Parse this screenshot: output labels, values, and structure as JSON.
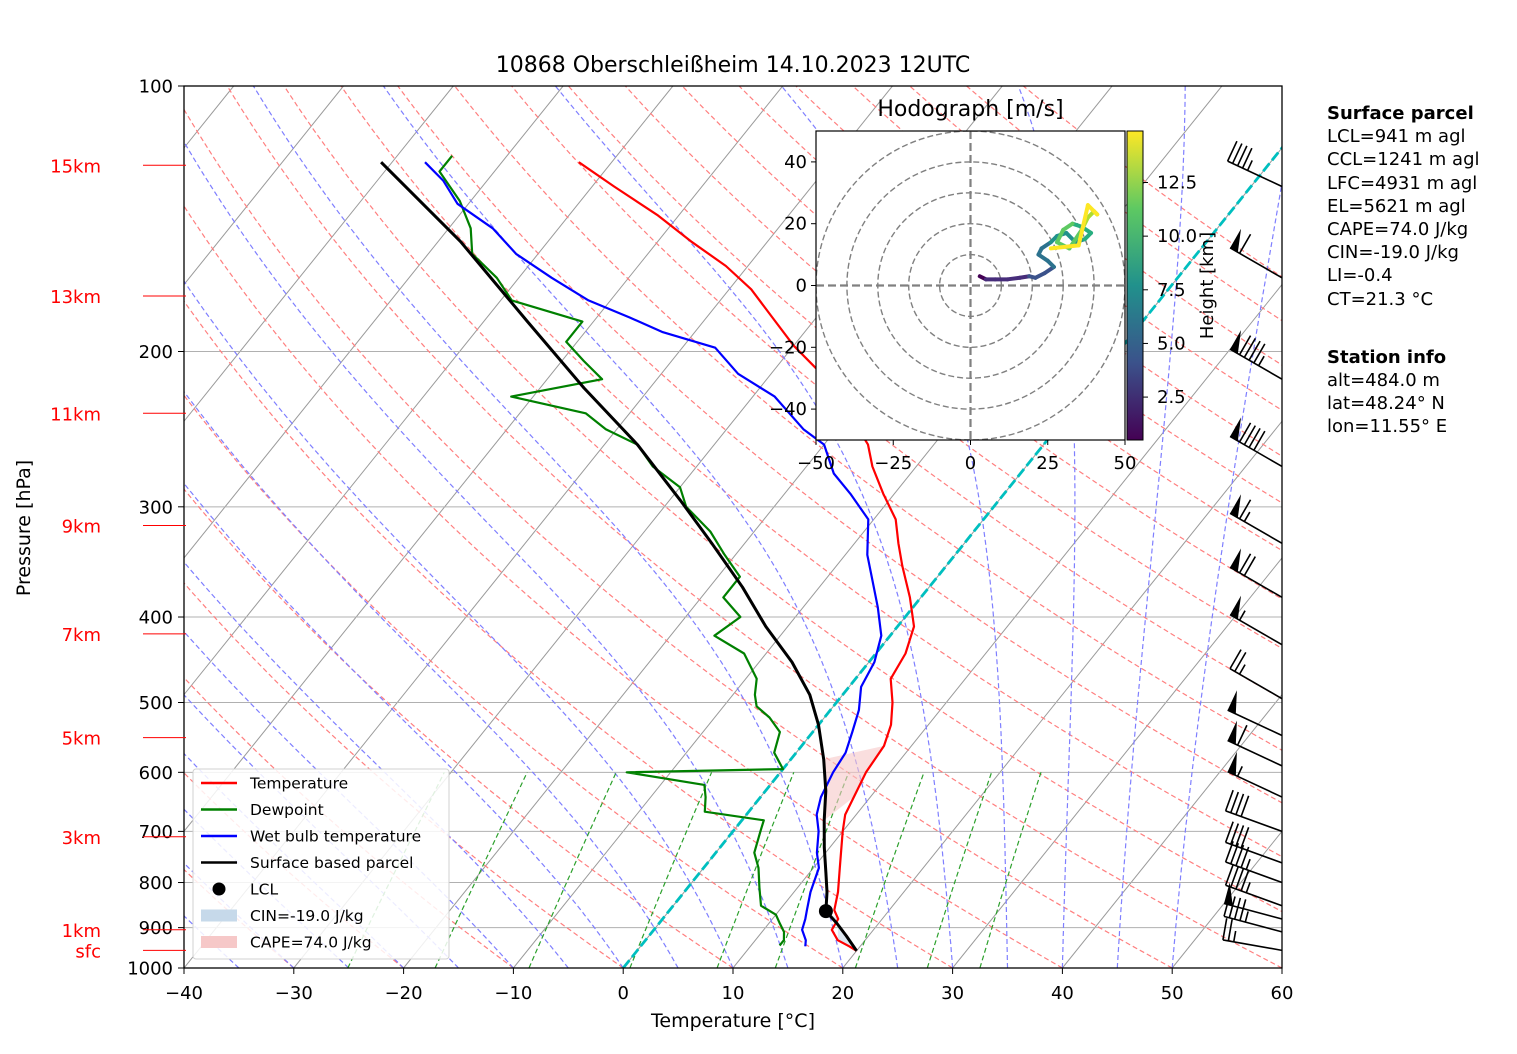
{
  "chart_data": {
    "type": "skew-t",
    "title": "10868 Oberschleißheim 14.10.2023 12UTC",
    "xlabel": "Temperature [°C]",
    "ylabel": "Pressure [hPa]",
    "xlim": [
      -40,
      60
    ],
    "ylim": [
      1000,
      100
    ],
    "y_scale": "log",
    "grid": true,
    "x_ticks": [
      -40,
      -30,
      -20,
      -10,
      0,
      10,
      20,
      30,
      40,
      50,
      60
    ],
    "x_tick_labels": [
      "−40",
      "−30",
      "−20",
      "−10",
      "0",
      "10",
      "20",
      "30",
      "40",
      "50",
      "60"
    ],
    "y_ticks": [
      1000,
      900,
      800,
      700,
      600,
      500,
      400,
      300,
      200,
      100
    ],
    "height_markers": [
      {
        "label": "sfc",
        "p": 955
      },
      {
        "label": "1km",
        "p": 905
      },
      {
        "label": "3km",
        "p": 710
      },
      {
        "label": "5km",
        "p": 548
      },
      {
        "label": "7km",
        "p": 418
      },
      {
        "label": "9km",
        "p": 315
      },
      {
        "label": "11km",
        "p": 235
      },
      {
        "label": "13km",
        "p": 173
      },
      {
        "label": "15km",
        "p": 123
      }
    ],
    "series": [
      {
        "name": "Temperature",
        "color": "#ff0000",
        "points": [
          [
            20,
            956
          ],
          [
            19,
            945
          ],
          [
            17.5,
            930
          ],
          [
            16.2,
            905
          ],
          [
            16,
            880
          ],
          [
            15,
            860
          ],
          [
            14,
            820
          ],
          [
            12.4,
            770
          ],
          [
            11.4,
            740
          ],
          [
            10,
            700
          ],
          [
            9,
            670
          ],
          [
            8.5,
            640
          ],
          [
            7.8,
            600
          ],
          [
            7.5,
            560
          ],
          [
            6.6,
            530
          ],
          [
            5.1,
            500
          ],
          [
            3.2,
            470
          ],
          [
            2.7,
            440
          ],
          [
            1.5,
            410
          ],
          [
            -1,
            380
          ],
          [
            -4,
            350
          ],
          [
            -6,
            330
          ],
          [
            -8,
            310
          ],
          [
            -11,
            290
          ],
          [
            -14,
            270
          ],
          [
            -16,
            255
          ],
          [
            -19,
            240
          ],
          [
            -22,
            225
          ],
          [
            -26,
            210
          ],
          [
            -30,
            197
          ],
          [
            -34,
            183
          ],
          [
            -38,
            170
          ],
          [
            -42,
            160
          ],
          [
            -47,
            150
          ],
          [
            -52,
            140
          ],
          [
            -58,
            130
          ],
          [
            -63,
            122
          ]
        ]
      },
      {
        "name": "Dewpoint",
        "color": "#008000",
        "points": [
          [
            12.6,
            943
          ],
          [
            12.6,
            930
          ],
          [
            12,
            910
          ],
          [
            11,
            890
          ],
          [
            10,
            870
          ],
          [
            8,
            850
          ],
          [
            6.5,
            810
          ],
          [
            5,
            770
          ],
          [
            3.5,
            740
          ],
          [
            2.5,
            700
          ],
          [
            2,
            680
          ],
          [
            -4,
            665
          ],
          [
            -5,
            640
          ],
          [
            -6,
            620
          ],
          [
            -14,
            600
          ],
          [
            0,
            595
          ],
          [
            -2,
            570
          ],
          [
            -3,
            540
          ],
          [
            -5,
            520
          ],
          [
            -7,
            505
          ],
          [
            -8,
            490
          ],
          [
            -9,
            470
          ],
          [
            -12,
            440
          ],
          [
            -16,
            420
          ],
          [
            -15,
            400
          ],
          [
            -18,
            380
          ],
          [
            -18,
            360
          ],
          [
            -21,
            340
          ],
          [
            -24,
            320
          ],
          [
            -28,
            300
          ],
          [
            -30,
            285
          ],
          [
            -34,
            270
          ],
          [
            -37,
            255
          ],
          [
            -41,
            245
          ],
          [
            -44,
            235
          ],
          [
            -52,
            225
          ],
          [
            -45,
            215
          ],
          [
            -48,
            205
          ],
          [
            -51,
            195
          ],
          [
            -51,
            185
          ],
          [
            -59,
            175
          ],
          [
            -62,
            165
          ],
          [
            -66,
            155
          ],
          [
            -68,
            145
          ],
          [
            -71,
            135
          ],
          [
            -75,
            125
          ],
          [
            -75,
            120
          ]
        ]
      },
      {
        "name": "Wet bulb temperature",
        "color": "#0000ff",
        "points": [
          [
            15,
            945
          ],
          [
            14.6,
            930
          ],
          [
            13.5,
            905
          ],
          [
            13,
            880
          ],
          [
            12.5,
            860
          ],
          [
            11.5,
            820
          ],
          [
            10.5,
            770
          ],
          [
            9.2,
            740
          ],
          [
            7.8,
            700
          ],
          [
            6.4,
            670
          ],
          [
            5.5,
            640
          ],
          [
            4.8,
            600
          ],
          [
            4.5,
            570
          ],
          [
            3.6,
            540
          ],
          [
            2.6,
            510
          ],
          [
            1.1,
            480
          ],
          [
            0.5,
            450
          ],
          [
            -0.8,
            420
          ],
          [
            -3.2,
            390
          ],
          [
            -6,
            360
          ],
          [
            -8,
            340
          ],
          [
            -10.5,
            310
          ],
          [
            -14,
            290
          ],
          [
            -17,
            275
          ],
          [
            -20,
            255
          ],
          [
            -23,
            245
          ],
          [
            -28,
            225
          ],
          [
            -33,
            212
          ],
          [
            -37,
            198
          ],
          [
            -43,
            190
          ],
          [
            -47,
            183
          ],
          [
            -52,
            175
          ],
          [
            -57,
            165
          ],
          [
            -62,
            155
          ],
          [
            -66,
            145
          ],
          [
            -71,
            136
          ],
          [
            -74,
            128
          ],
          [
            -77,
            122
          ]
        ]
      },
      {
        "name": "Surface based parcel",
        "color": "#000000",
        "points": [
          [
            20,
            956
          ],
          [
            18,
            920
          ],
          [
            16.2,
            890
          ],
          [
            14.3,
            862
          ],
          [
            13,
            820
          ],
          [
            11.5,
            780
          ],
          [
            9.5,
            730
          ],
          [
            7.5,
            680
          ],
          [
            5.5,
            630
          ],
          [
            3,
            580
          ],
          [
            0,
            530
          ],
          [
            -3,
            490
          ],
          [
            -7,
            450
          ],
          [
            -12,
            410
          ],
          [
            -17,
            370
          ],
          [
            -23,
            330
          ],
          [
            -29,
            295
          ],
          [
            -37,
            255
          ],
          [
            -46,
            220
          ],
          [
            -56,
            185
          ],
          [
            -68,
            150
          ],
          [
            -81,
            122
          ]
        ]
      }
    ],
    "lcl": {
      "name": "LCL",
      "t": 14.3,
      "p": 862
    },
    "legend_extra": [
      "CIN=-19.0 J/kg",
      "CAPE=74.0 J/kg"
    ],
    "legend_position": "lower-left",
    "wind_barbs": [
      {
        "p": 955,
        "speed": 25,
        "dir": 260
      },
      {
        "p": 910,
        "speed": 45,
        "dir": 255
      },
      {
        "p": 880,
        "speed": 50,
        "dir": 255
      },
      {
        "p": 850,
        "speed": 45,
        "dir": 250
      },
      {
        "p": 800,
        "speed": 45,
        "dir": 250
      },
      {
        "p": 760,
        "speed": 40,
        "dir": 250
      },
      {
        "p": 700,
        "speed": 40,
        "dir": 250
      },
      {
        "p": 640,
        "speed": 55,
        "dir": 245
      },
      {
        "p": 590,
        "speed": 60,
        "dir": 245
      },
      {
        "p": 545,
        "speed": 50,
        "dir": 245
      },
      {
        "p": 495,
        "speed": 25,
        "dir": 240
      },
      {
        "p": 430,
        "speed": 55,
        "dir": 240
      },
      {
        "p": 380,
        "speed": 70,
        "dir": 240
      },
      {
        "p": 330,
        "speed": 65,
        "dir": 240
      },
      {
        "p": 270,
        "speed": 90,
        "dir": 240
      },
      {
        "p": 215,
        "speed": 95,
        "dir": 240
      },
      {
        "p": 165,
        "speed": 60,
        "dir": 240
      },
      {
        "p": 130,
        "speed": 45,
        "dir": 245
      }
    ],
    "hodograph": {
      "title": "Hodograph [m/s]",
      "xlim": [
        -50,
        50
      ],
      "ylim": [
        -50,
        50
      ],
      "ticks": [
        -40,
        -20,
        0,
        20,
        40
      ],
      "x_tick_labels": [
        "−50",
        "−25",
        "0",
        "25",
        "50"
      ],
      "y_tick_labels": [
        "−40",
        "−20",
        "0",
        "20",
        "40"
      ],
      "rings": [
        10,
        20,
        30,
        40,
        50
      ],
      "colorbar_label": "Height [km]",
      "colorbar_ticks": [
        "2.5",
        "5.0",
        "7.5",
        "10.0",
        "12.5"
      ],
      "colorbar_range": [
        0.5,
        14.9
      ],
      "points": [
        [
          3,
          3,
          0.6
        ],
        [
          5,
          2,
          1
        ],
        [
          8,
          2,
          1.5
        ],
        [
          12,
          2,
          2
        ],
        [
          16,
          2.5,
          2.5
        ],
        [
          19,
          3,
          3
        ],
        [
          21,
          2.5,
          3.5
        ],
        [
          24,
          4,
          4
        ],
        [
          27,
          6,
          4.5
        ],
        [
          25,
          8,
          5
        ],
        [
          22,
          10,
          5.5
        ],
        [
          23,
          12,
          6
        ],
        [
          26,
          14,
          6.5
        ],
        [
          28,
          16,
          7
        ],
        [
          31,
          17,
          7.5
        ],
        [
          34,
          14,
          8
        ],
        [
          37,
          15,
          8.5
        ],
        [
          39,
          17,
          9
        ],
        [
          36,
          19,
          9.5
        ],
        [
          33,
          20,
          10
        ],
        [
          30,
          18,
          10.5
        ],
        [
          28,
          14,
          11
        ],
        [
          32,
          12,
          11.5
        ],
        [
          36,
          18,
          12
        ],
        [
          38,
          22,
          12.5
        ],
        [
          40,
          24,
          13
        ],
        [
          41,
          23,
          13.5
        ],
        [
          38,
          26,
          14
        ],
        [
          35,
          13,
          14.5
        ],
        [
          26,
          12,
          14.9
        ]
      ]
    }
  },
  "annotation": {
    "surface_title": "Surface parcel",
    "surface_lines": [
      "LCL=941 m agl",
      "CCL=1241 m agl",
      "LFC=4931 m agl",
      "EL=5621 m agl",
      "CAPE=74.0 J/kg",
      "CIN=-19.0 J/kg",
      "LI=-0.4",
      "CT=21.3 °C"
    ],
    "station_title": "Station info",
    "station_lines": [
      "alt=484.0 m",
      "lat=48.24° N",
      "lon=11.55° E"
    ]
  },
  "colors": {
    "temperature": "#ff0000",
    "dewpoint": "#008000",
    "wetbulb": "#0000ff",
    "parcel": "#000000",
    "dry_adiabat": "#ff7f7f",
    "moist_adiabat": "#7f7fff",
    "mixing_ratio": "#2ca02c",
    "isotherm_zero": "#00bfbf",
    "height_marker": "#ff0000",
    "cin_fill": "#c6d9ea",
    "cape_fill": "#f6c8c8"
  }
}
